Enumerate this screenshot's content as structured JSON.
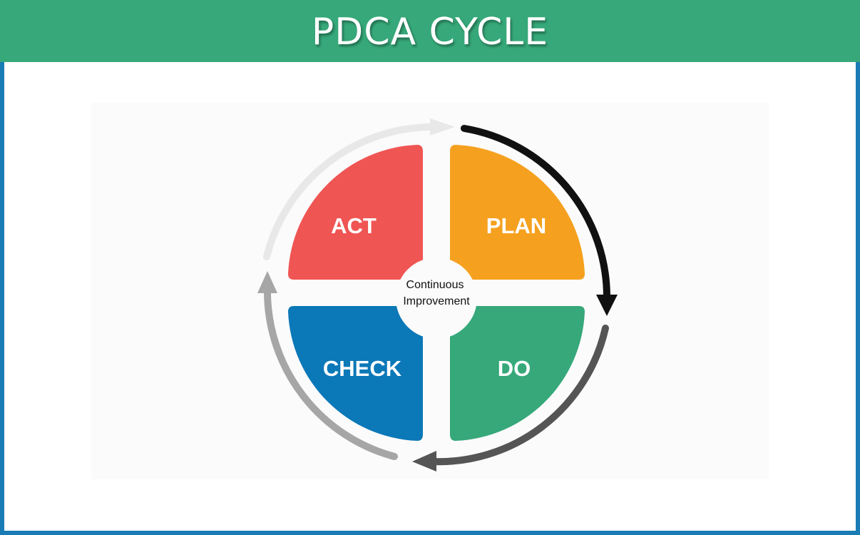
{
  "header": {
    "title": "PDCA CYCLE"
  },
  "diagram": {
    "center_line1": "Continuous",
    "center_line2": "Improvement",
    "quadrants": [
      {
        "label": "PLAN",
        "color": "#f5a11f"
      },
      {
        "label": "DO",
        "color": "#36a879"
      },
      {
        "label": "CHECK",
        "color": "#0b78b8"
      },
      {
        "label": "ACT",
        "color": "#ef5553"
      }
    ],
    "arrow_colors": [
      "#111111",
      "#555555",
      "#a6a6a6",
      "#e8e8e8"
    ]
  },
  "colors": {
    "header_bg": "#36a879",
    "frame_border": "#1a7cb4"
  }
}
